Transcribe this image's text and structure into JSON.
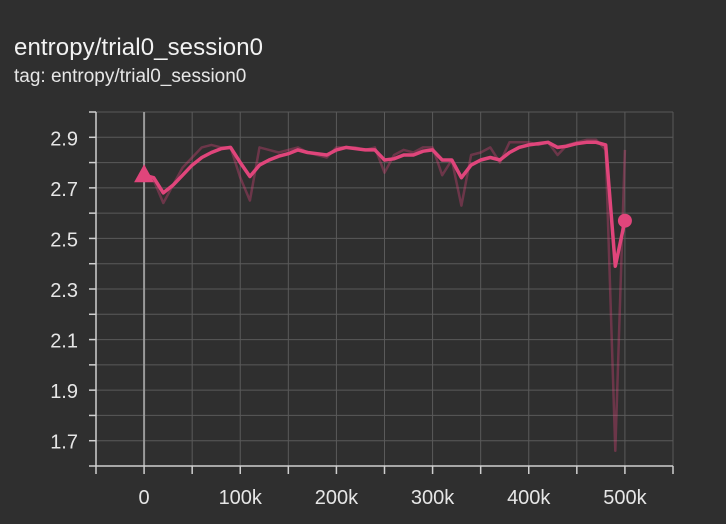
{
  "card": {
    "title": "entropy/trial0_session0",
    "tag": "tag: entropy/trial0_session0"
  },
  "colors": {
    "background": "#2f2f2f",
    "grid": "#5a5a5a",
    "axis": "#cfcfcf",
    "series": "#e0457b",
    "zero_line": "#9a9a9a"
  },
  "chart_data": {
    "type": "line",
    "title": "",
    "xlabel": "",
    "ylabel": "",
    "xlim": [
      -50000,
      550000
    ],
    "ylim": [
      1.6,
      3.0
    ],
    "x_ticks": [
      0,
      100000,
      200000,
      300000,
      400000,
      500000
    ],
    "x_tick_labels": [
      "0",
      "100k",
      "200k",
      "300k",
      "400k",
      "500k"
    ],
    "y_ticks": [
      1.7,
      1.9,
      2.1,
      2.3,
      2.5,
      2.7,
      2.9
    ],
    "y_tick_labels": [
      "1.7",
      "1.9",
      "2.1",
      "2.3",
      "2.5",
      "2.7",
      "2.9"
    ],
    "grid": true,
    "legend": "none",
    "series": [
      {
        "role": "raw",
        "x": [
          0,
          10000,
          20000,
          30000,
          40000,
          50000,
          60000,
          70000,
          80000,
          90000,
          100000,
          110000,
          120000,
          130000,
          140000,
          150000,
          160000,
          170000,
          180000,
          190000,
          200000,
          210000,
          220000,
          230000,
          240000,
          250000,
          260000,
          270000,
          280000,
          290000,
          300000,
          310000,
          320000,
          330000,
          340000,
          350000,
          360000,
          370000,
          380000,
          390000,
          400000,
          410000,
          420000,
          430000,
          440000,
          450000,
          460000,
          470000,
          480000,
          490000,
          500000
        ],
        "y": [
          2.75,
          2.73,
          2.64,
          2.71,
          2.78,
          2.82,
          2.86,
          2.87,
          2.86,
          2.86,
          2.74,
          2.65,
          2.86,
          2.85,
          2.84,
          2.85,
          2.86,
          2.84,
          2.83,
          2.82,
          2.86,
          2.86,
          2.86,
          2.85,
          2.86,
          2.76,
          2.83,
          2.85,
          2.84,
          2.86,
          2.86,
          2.75,
          2.81,
          2.63,
          2.83,
          2.84,
          2.86,
          2.8,
          2.88,
          2.88,
          2.88,
          2.87,
          2.88,
          2.83,
          2.87,
          2.88,
          2.89,
          2.89,
          2.85,
          1.66,
          2.85
        ]
      },
      {
        "role": "smoothed",
        "x": [
          0,
          10000,
          20000,
          30000,
          40000,
          50000,
          60000,
          70000,
          80000,
          90000,
          100000,
          110000,
          120000,
          130000,
          140000,
          150000,
          160000,
          170000,
          180000,
          190000,
          200000,
          210000,
          220000,
          230000,
          240000,
          250000,
          260000,
          270000,
          280000,
          290000,
          300000,
          310000,
          320000,
          330000,
          340000,
          350000,
          360000,
          370000,
          380000,
          390000,
          400000,
          410000,
          420000,
          430000,
          440000,
          450000,
          460000,
          470000,
          480000,
          490000,
          500000
        ],
        "y": [
          2.75,
          2.74,
          2.68,
          2.71,
          2.75,
          2.79,
          2.82,
          2.84,
          2.855,
          2.86,
          2.8,
          2.745,
          2.79,
          2.81,
          2.825,
          2.835,
          2.85,
          2.84,
          2.835,
          2.83,
          2.85,
          2.86,
          2.855,
          2.85,
          2.85,
          2.81,
          2.815,
          2.83,
          2.83,
          2.845,
          2.85,
          2.81,
          2.81,
          2.74,
          2.79,
          2.81,
          2.82,
          2.81,
          2.84,
          2.86,
          2.87,
          2.875,
          2.88,
          2.86,
          2.865,
          2.875,
          2.88,
          2.88,
          2.87,
          2.39,
          2.57
        ]
      }
    ]
  }
}
